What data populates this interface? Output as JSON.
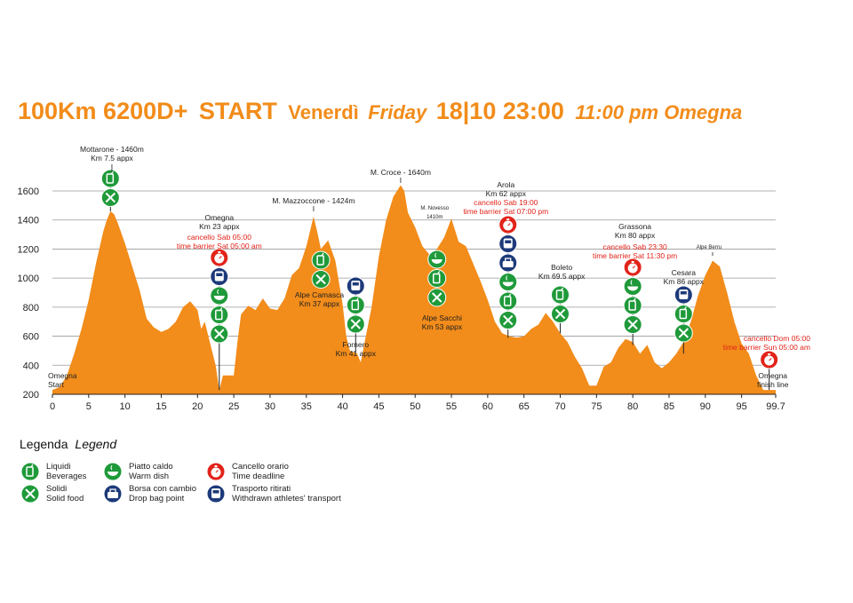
{
  "title": {
    "part1": "100Km 6200D+",
    "part2": "START",
    "part3": "Venerdì",
    "part4": "Friday",
    "part5": "18|10 23:00",
    "part6": "11:00 pm Omegna"
  },
  "colors": {
    "profile": "#f28c1a",
    "green": "#1f9a3a",
    "navy": "#1d3a7a",
    "red": "#e2231a",
    "title": "#f28c1a",
    "grid": "#999999"
  },
  "chart_data": {
    "type": "area",
    "xlabel": "",
    "ylabel": "",
    "xlim": [
      0,
      99.7
    ],
    "ylim": [
      200,
      1700
    ],
    "x_ticks": [
      0,
      5,
      10,
      15,
      20,
      25,
      30,
      35,
      40,
      45,
      50,
      55,
      60,
      65,
      70,
      75,
      80,
      85,
      90,
      95,
      99.7
    ],
    "x_tick_labels": [
      "0",
      "5",
      "10",
      "15",
      "20",
      "25",
      "30",
      "35",
      "40",
      "45",
      "50",
      "55",
      "60",
      "65",
      "70",
      "75",
      "80",
      "85",
      "90",
      "95",
      "99.7"
    ],
    "y_ticks": [
      200,
      400,
      600,
      800,
      1000,
      1200,
      1400,
      1600
    ],
    "grid": true,
    "elevation": [
      [
        0,
        230
      ],
      [
        1,
        250
      ],
      [
        2,
        330
      ],
      [
        3,
        480
      ],
      [
        4,
        650
      ],
      [
        5,
        850
      ],
      [
        6,
        1100
      ],
      [
        7,
        1320
      ],
      [
        7.5,
        1400
      ],
      [
        8,
        1460
      ],
      [
        8.5,
        1440
      ],
      [
        9,
        1380
      ],
      [
        10,
        1240
      ],
      [
        11,
        1080
      ],
      [
        12,
        920
      ],
      [
        13,
        720
      ],
      [
        14,
        660
      ],
      [
        15,
        630
      ],
      [
        16,
        650
      ],
      [
        17,
        700
      ],
      [
        18,
        800
      ],
      [
        19,
        840
      ],
      [
        20,
        780
      ],
      [
        20.5,
        650
      ],
      [
        21,
        700
      ],
      [
        21.5,
        600
      ],
      [
        22.5,
        400
      ],
      [
        23,
        230
      ],
      [
        23.5,
        330
      ],
      [
        24,
        330
      ],
      [
        25,
        330
      ],
      [
        25.5,
        560
      ],
      [
        26,
        750
      ],
      [
        27,
        810
      ],
      [
        28,
        780
      ],
      [
        29,
        860
      ],
      [
        30,
        790
      ],
      [
        31,
        780
      ],
      [
        32,
        860
      ],
      [
        33,
        1020
      ],
      [
        34,
        1070
      ],
      [
        35,
        1220
      ],
      [
        36,
        1424
      ],
      [
        36.5,
        1320
      ],
      [
        37,
        1200
      ],
      [
        38,
        1260
      ],
      [
        39,
        1120
      ],
      [
        40,
        820
      ],
      [
        40.5,
        600
      ],
      [
        41,
        500
      ],
      [
        42,
        480
      ],
      [
        42.5,
        420
      ],
      [
        43,
        550
      ],
      [
        44,
        800
      ],
      [
        45,
        1150
      ],
      [
        46,
        1400
      ],
      [
        47,
        1560
      ],
      [
        48,
        1640
      ],
      [
        48.5,
        1600
      ],
      [
        49,
        1450
      ],
      [
        50,
        1350
      ],
      [
        51,
        1220
      ],
      [
        52,
        1160
      ],
      [
        53,
        1200
      ],
      [
        54,
        1280
      ],
      [
        55,
        1410
      ],
      [
        56,
        1250
      ],
      [
        57,
        1220
      ],
      [
        58,
        1100
      ],
      [
        59,
        980
      ],
      [
        60,
        850
      ],
      [
        61,
        700
      ],
      [
        62,
        620
      ],
      [
        63,
        600
      ],
      [
        64,
        590
      ],
      [
        65,
        600
      ],
      [
        66,
        650
      ],
      [
        67,
        680
      ],
      [
        68,
        760
      ],
      [
        69,
        700
      ],
      [
        70,
        620
      ],
      [
        71,
        560
      ],
      [
        72,
        460
      ],
      [
        73,
        380
      ],
      [
        74,
        260
      ],
      [
        75,
        260
      ],
      [
        76,
        390
      ],
      [
        77,
        420
      ],
      [
        78,
        520
      ],
      [
        79,
        580
      ],
      [
        80,
        560
      ],
      [
        80.5,
        520
      ],
      [
        81,
        480
      ],
      [
        82,
        540
      ],
      [
        83,
        420
      ],
      [
        84,
        380
      ],
      [
        85,
        420
      ],
      [
        86,
        480
      ],
      [
        87,
        560
      ],
      [
        88,
        700
      ],
      [
        89,
        880
      ],
      [
        90,
        1020
      ],
      [
        91,
        1120
      ],
      [
        92,
        1080
      ],
      [
        93,
        900
      ],
      [
        94,
        700
      ],
      [
        95,
        550
      ],
      [
        96,
        480
      ],
      [
        97,
        330
      ],
      [
        98,
        230
      ],
      [
        99.7,
        230
      ]
    ]
  },
  "peak_labels": [
    {
      "x": 8.2,
      "lines": [
        "Mottarone - 1460m",
        "Km 7.5 appx"
      ]
    },
    {
      "x": 36,
      "lines": [
        "M. Mazzoccone - 1424m"
      ]
    },
    {
      "x": 48,
      "lines": [
        "M. Croce - 1640m"
      ]
    },
    {
      "x": 90.5,
      "lines": [
        "Alpe Berru"
      ],
      "small": true
    }
  ],
  "aid_labels": {
    "omegna_start": [
      "Omegna",
      "Start"
    ],
    "omegna23": [
      "Omegna",
      "Km 23 appx"
    ],
    "omegna23_red": [
      "cancello Sab 05:00",
      "time barrier Sat 05:00 am"
    ],
    "alpe_camasca": [
      "Alpe Camasca",
      "Km 37 appx"
    ],
    "fornero": [
      "Fornero",
      "Km 41 appx"
    ],
    "m_novesso": [
      "M. Novesso",
      "1410m"
    ],
    "alpe_sacchi": [
      "Alpe Sacchi",
      "Km 53 appx"
    ],
    "arola": [
      "Arola",
      "Km 62 appx"
    ],
    "arola_red": [
      "cancello Sab 19:00",
      "time barrier Sat 07:00 pm"
    ],
    "boleto": [
      "Boleto",
      "Km 69.5 appx"
    ],
    "grassona": [
      "Grassona",
      "Km 80 appx"
    ],
    "grassona_red": [
      "cancello Sab 23:30",
      "time barrier Sat 11:30 pm"
    ],
    "cesara": [
      "Cesara",
      "Km 86 appx"
    ],
    "omegna_finish": [
      "Omegna",
      "finish line"
    ],
    "omegna_finish_red": [
      "cancello Dom 05:00",
      "time barrier Sun 05:00 am"
    ]
  },
  "legend": {
    "title_it": "Legenda",
    "title_en": "Legend",
    "items": [
      {
        "icon": "beverage",
        "color": "green",
        "it": "Liquidi",
        "en": "Beverages"
      },
      {
        "icon": "solid",
        "color": "green",
        "it": "Solidi",
        "en": "Solid food"
      },
      {
        "icon": "warm",
        "color": "green",
        "it": "Piatto caldo",
        "en": "Warm dish"
      },
      {
        "icon": "bag",
        "color": "navy",
        "it": "Borsa con cambio",
        "en": "Drop bag point"
      },
      {
        "icon": "clock",
        "color": "red",
        "it": "Cancello orario",
        "en": "Time deadline"
      },
      {
        "icon": "bus",
        "color": "navy",
        "it": "Trasporto ritirati",
        "en": "Withdrawn athletes' transport"
      }
    ]
  }
}
